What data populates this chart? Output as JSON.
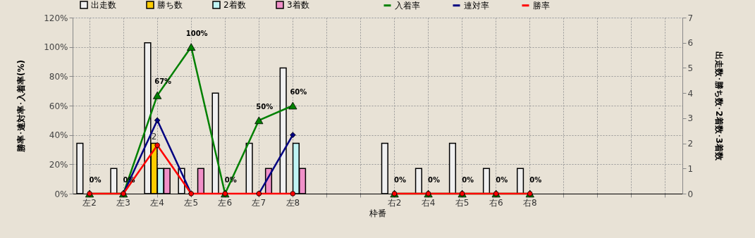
{
  "chart_data": {
    "type": "bar",
    "categories": [
      "左2",
      "左3",
      "左4",
      "左5",
      "左6",
      "左7",
      "左8",
      null,
      null,
      "右2",
      "右4",
      "右5",
      "右6",
      "右8",
      null,
      null,
      null,
      null
    ],
    "xlabel": "枠番",
    "ylabel": "勝率･連対率･入着率(%)",
    "y2label": "出走数･勝ち数･2着数･3着数",
    "series": [
      {
        "name": "出走数",
        "axis": "y2",
        "color": "#f0f0f0",
        "values": [
          2,
          1,
          6,
          1,
          4,
          2,
          5,
          null,
          null,
          2,
          1,
          2,
          1,
          1,
          null,
          null,
          null,
          null
        ]
      },
      {
        "name": "勝ち数",
        "axis": "y2",
        "color": "#ffcc00",
        "values": [
          0,
          0,
          2,
          0,
          0,
          0,
          0,
          null,
          null,
          0,
          0,
          0,
          0,
          0,
          null,
          null,
          null,
          null
        ],
        "value_labels": [
          null,
          null,
          "2",
          null,
          null,
          null,
          null,
          null,
          null,
          null,
          null,
          null,
          null,
          null,
          null,
          null,
          null,
          null
        ]
      },
      {
        "name": "2着数",
        "axis": "y2",
        "color": "#c0f4f4",
        "values": [
          0,
          0,
          1,
          0,
          0,
          0,
          2,
          null,
          null,
          0,
          0,
          0,
          0,
          0,
          null,
          null,
          null,
          null
        ]
      },
      {
        "name": "3着数",
        "axis": "y2",
        "color": "#f090c8",
        "values": [
          0,
          0,
          1,
          1,
          0,
          1,
          1,
          null,
          null,
          0,
          0,
          0,
          0,
          0,
          null,
          null,
          null,
          null
        ]
      },
      {
        "name": "入着率",
        "type": "line",
        "color": "#008000",
        "marker": "triangle",
        "values": [
          0,
          0,
          67,
          100,
          0,
          50,
          60,
          null,
          null,
          0,
          0,
          0,
          0,
          0,
          null,
          null,
          null,
          null
        ],
        "value_labels": [
          "0%",
          "0%",
          "67%",
          "100%",
          "0%",
          "50%",
          "60%",
          null,
          null,
          "0%",
          "0%",
          "0%",
          "0%",
          "0%",
          null,
          null,
          null,
          null
        ]
      },
      {
        "name": "連対率",
        "type": "line",
        "color": "#000080",
        "marker": "diamond",
        "values": [
          null,
          0,
          50,
          0,
          null,
          0,
          40,
          null,
          null,
          null,
          null,
          null,
          null,
          null,
          null,
          null,
          null,
          null
        ]
      },
      {
        "name": "勝率",
        "type": "line",
        "color": "#ff0000",
        "marker": "circle",
        "values": [
          0,
          0,
          33,
          0,
          0,
          0,
          0,
          null,
          null,
          0,
          0,
          0,
          0,
          0,
          null,
          null,
          null,
          null
        ]
      }
    ],
    "ylim": [
      0,
      120
    ],
    "yticks": [
      {
        "value": 0,
        "label": "0%"
      },
      {
        "value": 20,
        "label": "20%"
      },
      {
        "value": 40,
        "label": "40%"
      },
      {
        "value": 60,
        "label": "60%"
      },
      {
        "value": 80,
        "label": "80%"
      },
      {
        "value": 100,
        "label": "100%"
      },
      {
        "value": 120,
        "label": "120%"
      }
    ],
    "y2lim": [
      0,
      7
    ],
    "y2ticks": [
      0,
      1,
      2,
      3,
      4,
      5,
      6,
      7
    ],
    "grid": true,
    "legend": "top"
  }
}
